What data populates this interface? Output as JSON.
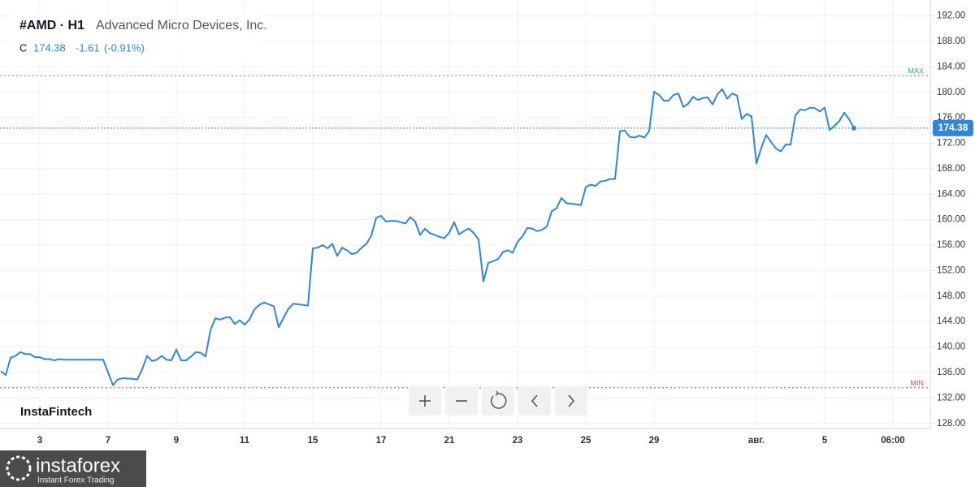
{
  "header": {
    "symbol": "#AMD · H1",
    "company": "Advanced Micro Devices, Inc.",
    "close_label": "C",
    "change": "-1.61",
    "change_pct": "(-0.91%)"
  },
  "watermark": "InstaFintech",
  "logo": {
    "name": "instaforex",
    "tagline": "Instant Forex Trading"
  },
  "chart_data": {
    "type": "line",
    "x": [
      -8,
      -7,
      -6,
      -5,
      -4,
      -3,
      -2,
      -1,
      0,
      1,
      2,
      3,
      4,
      5,
      13,
      15,
      16,
      17,
      19,
      20,
      21,
      22,
      23,
      24,
      25,
      26,
      27,
      28,
      29,
      30,
      31,
      32,
      33,
      34,
      35,
      36,
      37,
      38,
      39,
      40,
      41,
      42,
      43,
      44,
      45,
      46,
      47,
      48,
      49,
      50,
      51,
      52,
      53,
      55,
      56,
      57,
      58,
      59,
      60,
      61,
      62,
      63,
      64,
      65,
      66,
      67,
      68,
      69,
      70,
      71,
      72,
      73,
      74,
      75,
      76,
      77,
      78,
      79,
      80,
      81,
      82,
      83,
      84,
      85,
      86,
      87,
      88,
      89,
      90,
      91,
      92,
      93,
      94,
      95,
      96,
      97,
      98,
      99,
      100,
      101,
      102,
      103,
      104,
      105,
      106,
      107,
      108,
      109,
      111,
      112,
      113,
      114,
      115,
      116,
      117,
      118,
      119,
      120,
      121,
      122,
      123,
      124,
      125,
      126,
      127,
      128,
      129,
      130,
      131,
      132,
      133,
      134,
      135,
      136,
      137,
      138,
      139,
      140,
      141,
      142,
      143,
      144,
      145,
      146,
      147,
      148,
      149,
      150,
      151,
      152,
      153,
      154,
      155,
      156,
      157,
      158,
      159,
      160,
      161,
      162,
      163,
      164,
      165,
      166,
      167
    ],
    "series": [
      {
        "name": "AMD",
        "color": "#2f86dc",
        "values": [
          136.2,
          135.6,
          138.3,
          138.6,
          139.2,
          138.9,
          138.9,
          138.4,
          138.4,
          138.1,
          138.1,
          137.9,
          138.1,
          138.0,
          138.0,
          134.0,
          134.9,
          135.1,
          135.0,
          134.9,
          136.5,
          138.6,
          137.8,
          138.0,
          138.6,
          138.0,
          137.9,
          139.6,
          137.9,
          137.9,
          138.5,
          139.2,
          139.1,
          138.5,
          142.6,
          144.5,
          144.3,
          144.6,
          144.7,
          143.6,
          144.2,
          143.5,
          144.3,
          145.9,
          146.6,
          147.0,
          146.7,
          146.4,
          143.1,
          144.6,
          146.0,
          146.8,
          146.7,
          146.5,
          155.5,
          155.6,
          156.0,
          155.5,
          156.2,
          154.3,
          155.6,
          155.2,
          154.6,
          154.8,
          155.6,
          156.2,
          157.5,
          160.3,
          160.6,
          159.7,
          159.8,
          159.8,
          159.6,
          159.4,
          160.4,
          159.7,
          157.6,
          158.6,
          157.9,
          157.6,
          157.3,
          157.1,
          158.0,
          159.6,
          157.7,
          158.2,
          158.6,
          157.9,
          156.9,
          150.3,
          153.2,
          153.5,
          153.8,
          154.9,
          155.2,
          154.8,
          156.5,
          157.4,
          158.7,
          158.6,
          158.2,
          158.4,
          158.9,
          161.3,
          161.8,
          163.4,
          162.6,
          162.5,
          162.3,
          165.1,
          165.5,
          165.3,
          166.0,
          166.1,
          166.4,
          166.4,
          173.9,
          174.0,
          173.0,
          172.9,
          173.2,
          172.9,
          173.9,
          180.1,
          179.6,
          178.7,
          178.7,
          179.6,
          179.8,
          177.7,
          178.2,
          179.3,
          178.8,
          179.1,
          179.2,
          178.1,
          179.7,
          180.5,
          179.0,
          179.8,
          179.5,
          175.8,
          176.6,
          176.2,
          168.8,
          171.3,
          173.3,
          172.2,
          171.2,
          170.7,
          171.8,
          171.8,
          176.4,
          177.3,
          177.2,
          177.6,
          177.5,
          177.0,
          177.6,
          174.1,
          174.7,
          175.5,
          176.8,
          175.8,
          174.38
        ]
      }
    ],
    "last_price": 174.38,
    "max_line": {
      "label": "MAX",
      "value": 182.6,
      "color": "#3aa76d"
    },
    "min_line": {
      "label": "MIN",
      "value": 133.6,
      "color": "#e0474c"
    },
    "xlim": [
      -8.17,
      182.67
    ],
    "xticks": [
      {
        "value": 0,
        "label": "3"
      },
      {
        "value": 14,
        "label": "7"
      },
      {
        "value": 28,
        "label": "9"
      },
      {
        "value": 42,
        "label": "11"
      },
      {
        "value": 56,
        "label": "15"
      },
      {
        "value": 70,
        "label": "17"
      },
      {
        "value": 84,
        "label": "21"
      },
      {
        "value": 98,
        "label": "23"
      },
      {
        "value": 112,
        "label": "25"
      },
      {
        "value": 126,
        "label": "29"
      },
      {
        "value": 147,
        "label": "авг."
      },
      {
        "value": 161,
        "label": "5"
      },
      {
        "value": 175,
        "label": "06:00"
      }
    ],
    "ylim": [
      127.2,
      194.5
    ],
    "yticks": [
      {
        "value": 128,
        "label": "128.00"
      },
      {
        "value": 132,
        "label": "132.00"
      },
      {
        "value": 136,
        "label": "136.00"
      },
      {
        "value": 140,
        "label": "140.00"
      },
      {
        "value": 144,
        "label": "144.00"
      },
      {
        "value": 148,
        "label": "148.00"
      },
      {
        "value": 152,
        "label": "152.00"
      },
      {
        "value": 156,
        "label": "156.00"
      },
      {
        "value": 160,
        "label": "160.00"
      },
      {
        "value": 164,
        "label": "164.00"
      },
      {
        "value": 168,
        "label": "168.00"
      },
      {
        "value": 172,
        "label": "172.00"
      },
      {
        "value": 176,
        "label": "176.00"
      },
      {
        "value": 180,
        "label": "180.00"
      },
      {
        "value": 184,
        "label": "184.00"
      },
      {
        "value": 188,
        "label": "188.00"
      },
      {
        "value": 192,
        "label": "192.00"
      }
    ],
    "grid": true
  }
}
